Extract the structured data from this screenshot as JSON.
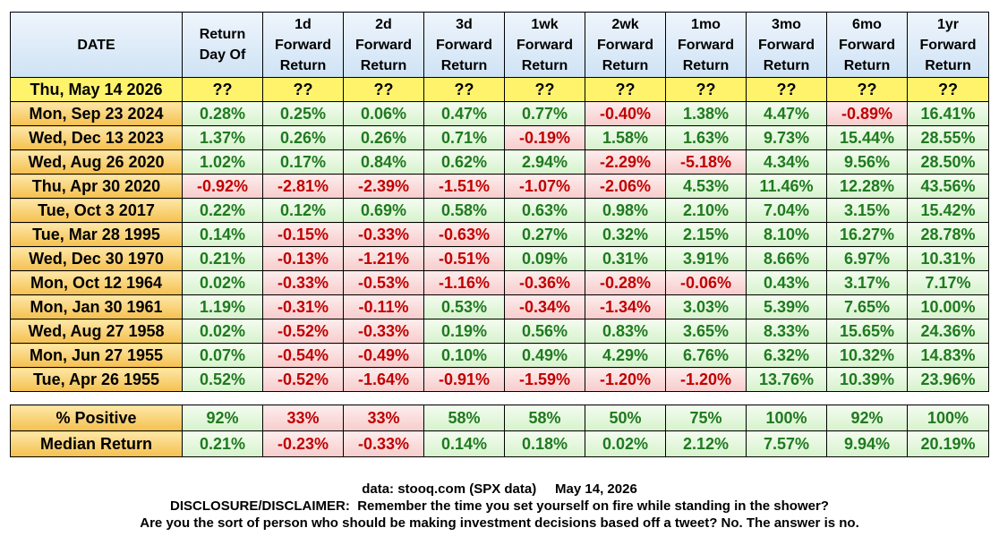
{
  "headers": [
    "DATE",
    "Return Day Of",
    "1d Forward Return",
    "2d Forward Return",
    "3d Forward Return",
    "1wk Forward Return",
    "2wk Forward Return",
    "1mo Forward Return",
    "3mo Forward Return",
    "6mo Forward Return",
    "1yr Forward Return"
  ],
  "header_lines": [
    [
      "DATE"
    ],
    [
      "Return",
      "Day Of"
    ],
    [
      "1d",
      "Forward",
      "Return"
    ],
    [
      "2d",
      "Forward",
      "Return"
    ],
    [
      "3d",
      "Forward",
      "Return"
    ],
    [
      "1wk",
      "Forward",
      "Return"
    ],
    [
      "2wk",
      "Forward",
      "Return"
    ],
    [
      "1mo",
      "Forward",
      "Return"
    ],
    [
      "3mo",
      "Forward",
      "Return"
    ],
    [
      "6mo",
      "Forward",
      "Return"
    ],
    [
      "1yr",
      "Forward",
      "Return"
    ]
  ],
  "rows": [
    {
      "date": "Thu, May 14 2026",
      "values": [
        "??",
        "??",
        "??",
        "??",
        "??",
        "??",
        "??",
        "??",
        "??",
        "??"
      ]
    },
    {
      "date": "Mon, Sep 23 2024",
      "values": [
        "0.28%",
        "0.25%",
        "0.06%",
        "0.47%",
        "0.77%",
        "-0.40%",
        "1.38%",
        "4.47%",
        "-0.89%",
        "16.41%"
      ]
    },
    {
      "date": "Wed, Dec 13 2023",
      "values": [
        "1.37%",
        "0.26%",
        "0.26%",
        "0.71%",
        "-0.19%",
        "1.58%",
        "1.63%",
        "9.73%",
        "15.44%",
        "28.55%"
      ]
    },
    {
      "date": "Wed, Aug 26 2020",
      "values": [
        "1.02%",
        "0.17%",
        "0.84%",
        "0.62%",
        "2.94%",
        "-2.29%",
        "-5.18%",
        "4.34%",
        "9.56%",
        "28.50%"
      ]
    },
    {
      "date": "Thu, Apr 30 2020",
      "values": [
        "-0.92%",
        "-2.81%",
        "-2.39%",
        "-1.51%",
        "-1.07%",
        "-2.06%",
        "4.53%",
        "11.46%",
        "12.28%",
        "43.56%"
      ]
    },
    {
      "date": "Tue, Oct 3 2017",
      "values": [
        "0.22%",
        "0.12%",
        "0.69%",
        "0.58%",
        "0.63%",
        "0.98%",
        "2.10%",
        "7.04%",
        "3.15%",
        "15.42%"
      ]
    },
    {
      "date": "Tue, Mar 28 1995",
      "values": [
        "0.14%",
        "-0.15%",
        "-0.33%",
        "-0.63%",
        "0.27%",
        "0.32%",
        "2.15%",
        "8.10%",
        "16.27%",
        "28.78%"
      ]
    },
    {
      "date": "Wed, Dec 30 1970",
      "values": [
        "0.21%",
        "-0.13%",
        "-1.21%",
        "-0.51%",
        "0.09%",
        "0.31%",
        "3.91%",
        "8.66%",
        "6.97%",
        "10.31%"
      ]
    },
    {
      "date": "Mon, Oct 12 1964",
      "values": [
        "0.02%",
        "-0.33%",
        "-0.53%",
        "-1.16%",
        "-0.36%",
        "-0.28%",
        "-0.06%",
        "0.43%",
        "3.17%",
        "7.17%"
      ]
    },
    {
      "date": "Mon, Jan 30 1961",
      "values": [
        "1.19%",
        "-0.31%",
        "-0.11%",
        "0.53%",
        "-0.34%",
        "-1.34%",
        "3.03%",
        "5.39%",
        "7.65%",
        "10.00%"
      ]
    },
    {
      "date": "Wed, Aug 27 1958",
      "values": [
        "0.02%",
        "-0.52%",
        "-0.33%",
        "0.19%",
        "0.56%",
        "0.83%",
        "3.65%",
        "8.33%",
        "15.65%",
        "24.36%"
      ]
    },
    {
      "date": "Mon, Jun 27 1955",
      "values": [
        "0.07%",
        "-0.54%",
        "-0.49%",
        "0.10%",
        "0.49%",
        "4.29%",
        "6.76%",
        "6.32%",
        "10.32%",
        "14.83%"
      ]
    },
    {
      "date": "Tue, Apr 26 1955",
      "values": [
        "0.52%",
        "-0.52%",
        "-1.64%",
        "-0.91%",
        "-1.59%",
        "-1.20%",
        "-1.20%",
        "13.76%",
        "10.39%",
        "23.96%"
      ]
    }
  ],
  "summary": [
    {
      "label": "% Positive",
      "values": [
        "92%",
        "33%",
        "33%",
        "58%",
        "58%",
        "50%",
        "75%",
        "100%",
        "92%",
        "100%"
      ],
      "signs": [
        "pos",
        "neg",
        "neg",
        "pos",
        "pos",
        "pos",
        "pos",
        "pos",
        "pos",
        "pos"
      ]
    },
    {
      "label": "Median Return",
      "values": [
        "0.21%",
        "-0.23%",
        "-0.33%",
        "0.14%",
        "0.18%",
        "0.02%",
        "2.12%",
        "7.57%",
        "9.94%",
        "20.19%"
      ],
      "signs": [
        "pos",
        "neg",
        "neg",
        "pos",
        "pos",
        "pos",
        "pos",
        "pos",
        "pos",
        "pos"
      ]
    }
  ],
  "footer": {
    "source": "data: stooq.com (SPX data)     May 14, 2026",
    "disclaimer": "DISCLOSURE/DISCLAIMER:  Remember the time you set yourself on fire while standing in the shower?",
    "closing": "Are you the sort of person who should be making investment decisions based off a tweet? No. The answer is no."
  },
  "colors": {
    "positive_text": "#1f7a1f",
    "negative_text": "#c00000",
    "positive_fill": "#dff5d6",
    "negative_fill": "#f9d6d6",
    "date_fill": "#f8cf6a",
    "current_row_fill": "#fff36b",
    "header_fill": "#dbeaf8"
  }
}
